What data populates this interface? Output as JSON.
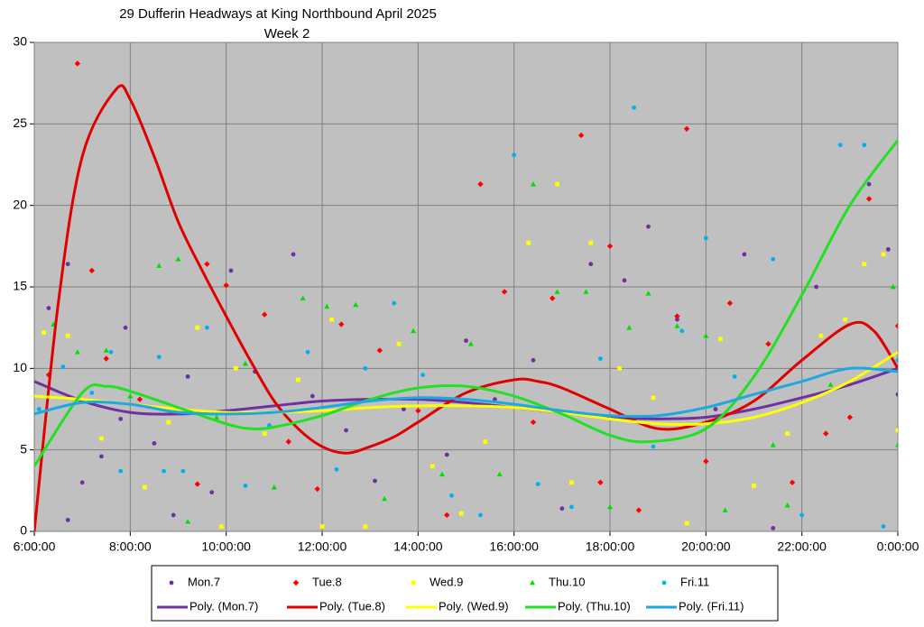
{
  "chart_data": {
    "type": "scatter",
    "title": "29 Dufferin Headways at King Northbound April 2025",
    "subtitle": "Week 2",
    "xlim": [
      6,
      24
    ],
    "ylim": [
      0,
      30
    ],
    "xticks": [
      {
        "value": 6,
        "label": "6:00:00"
      },
      {
        "value": 8,
        "label": "8:00:00"
      },
      {
        "value": 10,
        "label": "10:00:00"
      },
      {
        "value": 12,
        "label": "12:00:00"
      },
      {
        "value": 14,
        "label": "14:00:00"
      },
      {
        "value": 16,
        "label": "16:00:00"
      },
      {
        "value": 18,
        "label": "18:00:00"
      },
      {
        "value": 20,
        "label": "20:00:00"
      },
      {
        "value": 22,
        "label": "22:00:00"
      },
      {
        "value": 24,
        "label": "0:00:00"
      }
    ],
    "yticks": [
      0,
      5,
      10,
      15,
      20,
      25,
      30
    ],
    "grid": true,
    "legend": "bottom",
    "plot_background": "#c0c0c0",
    "series": [
      {
        "name": "Mon.7",
        "color": "#7030a0",
        "marker": "circle",
        "x": [
          6.3,
          6.7,
          6.7,
          7.0,
          7.4,
          7.8,
          7.9,
          8.5,
          8.9,
          9.2,
          9.7,
          10.1,
          10.6,
          11.4,
          11.8,
          12.5,
          13.1,
          13.7,
          14.6,
          15.0,
          15.6,
          16.4,
          17.0,
          17.6,
          18.3,
          18.8,
          19.4,
          20.2,
          20.8,
          21.4,
          22.3,
          23.4,
          23.8,
          24
        ],
        "values": [
          13.7,
          16.4,
          0.7,
          3.0,
          4.6,
          6.9,
          12.5,
          5.4,
          1.0,
          9.5,
          2.4,
          16,
          9.8,
          17,
          8.3,
          6.2,
          3.1,
          7.5,
          4.7,
          11.7,
          8.1,
          10.5,
          1.4,
          16.4,
          15.4,
          18.7,
          13,
          7.5,
          17,
          0.2,
          15,
          21.3,
          17.3,
          8.4
        ]
      },
      {
        "name": "Tue.8",
        "color": "#ff0000",
        "marker": "diamond",
        "x": [
          6.3,
          6.9,
          7.2,
          7.5,
          8.2,
          9.4,
          9.6,
          10.0,
          10.8,
          11.3,
          11.9,
          12.4,
          13.2,
          14.0,
          14.6,
          15.3,
          15.8,
          16.4,
          16.8,
          17.4,
          17.8,
          18.0,
          18.6,
          19.4,
          19.6,
          20.0,
          20.5,
          21.3,
          21.8,
          22.5,
          23.0,
          23.4,
          24
        ],
        "values": [
          9.6,
          28.7,
          16,
          10.6,
          8.1,
          2.9,
          16.4,
          15.1,
          13.3,
          5.5,
          2.6,
          12.7,
          11.1,
          7.4,
          1.0,
          21.3,
          14.7,
          6.7,
          14.3,
          24.3,
          3.0,
          17.5,
          1.3,
          13.2,
          24.7,
          4.3,
          14,
          11.5,
          3,
          6,
          7,
          20.4,
          12.6
        ]
      },
      {
        "name": "Wed.9",
        "color": "#ffff00",
        "marker": "square",
        "x": [
          6.2,
          6.7,
          7.4,
          8.3,
          8.8,
          9.4,
          9.9,
          10.2,
          10.8,
          11.5,
          12.0,
          12.2,
          12.9,
          13.6,
          14.3,
          14.9,
          15.4,
          16.3,
          16.9,
          17.2,
          17.6,
          18.2,
          18.9,
          19.6,
          20.3,
          21.0,
          21.7,
          22.4,
          22.9,
          23.3,
          23.7,
          24
        ],
        "values": [
          12.2,
          12,
          5.7,
          2.7,
          6.7,
          12.5,
          0.3,
          10,
          6,
          9.3,
          0.3,
          13,
          0.3,
          11.5,
          4,
          1.1,
          5.5,
          17.7,
          21.3,
          3,
          17.7,
          10,
          8.2,
          0.5,
          11.8,
          2.8,
          6,
          12,
          13,
          16.4,
          17,
          6.2
        ]
      },
      {
        "name": "Thu.10",
        "color": "#00e000",
        "marker": "triangle",
        "x": [
          6.4,
          6.9,
          7.5,
          8.0,
          8.6,
          9.0,
          9.2,
          9.8,
          10.4,
          11.0,
          11.6,
          12.1,
          12.7,
          13.3,
          13.9,
          14.5,
          15.1,
          15.7,
          16.4,
          16.9,
          17.5,
          18.0,
          18.4,
          18.8,
          19.4,
          20.0,
          20.4,
          21.4,
          21.7,
          22.6,
          23.9,
          24
        ],
        "values": [
          12.7,
          11,
          11.1,
          8.3,
          16.3,
          16.7,
          0.6,
          7,
          10.3,
          2.7,
          14.3,
          13.8,
          13.9,
          2,
          12.3,
          3.5,
          11.5,
          3.5,
          21.3,
          14.7,
          14.7,
          1.5,
          12.5,
          14.6,
          12.6,
          12,
          1.3,
          5.3,
          1.6,
          9,
          15,
          5.3
        ]
      },
      {
        "name": "Fri.11",
        "color": "#00b0f0",
        "marker": "circle",
        "x": [
          6.1,
          6.6,
          7.2,
          7.6,
          7.8,
          8.6,
          8.7,
          9.1,
          9.6,
          10.4,
          10.9,
          11.7,
          12.3,
          12.9,
          13.5,
          14.1,
          14.7,
          15.3,
          16.0,
          16.5,
          17.2,
          17.8,
          18.5,
          18.9,
          19.5,
          20.0,
          20.6,
          21.4,
          22.0,
          22.8,
          23.3,
          23.7,
          24
        ],
        "values": [
          7.5,
          10.1,
          8.5,
          11,
          3.7,
          10.7,
          3.7,
          3.7,
          12.5,
          2.8,
          6.5,
          11,
          3.8,
          10,
          14,
          9.6,
          2.2,
          1.0,
          23.1,
          2.9,
          1.5,
          10.6,
          26,
          5.2,
          12.3,
          18,
          9.5,
          16.7,
          1.0,
          23.7,
          23.7,
          0.3,
          10.5
        ]
      }
    ],
    "trendlines": [
      {
        "name": "Poly. (Mon.7)",
        "color": "#7030a0",
        "x": [
          6,
          7,
          8,
          9,
          10,
          11,
          12,
          13,
          14,
          15,
          16,
          17,
          18,
          19,
          20,
          21,
          22,
          23,
          24
        ],
        "values": [
          9.2,
          8,
          7.3,
          7.2,
          7.4,
          7.7,
          8.0,
          8.1,
          8.1,
          7.9,
          7.6,
          7.3,
          7.0,
          6.9,
          7.0,
          7.5,
          8.2,
          9.0,
          10
        ]
      },
      {
        "name": "Poly. (Tue.8)",
        "color": "#e00000",
        "x": [
          6,
          6.5,
          7,
          7.7,
          8,
          8.5,
          9,
          9.5,
          10,
          10.5,
          11,
          11.5,
          12,
          12.5,
          13,
          13.5,
          14,
          15,
          16,
          16.5,
          17,
          18,
          19,
          20,
          21,
          22,
          23,
          23.5,
          24
        ],
        "values": [
          0,
          14,
          23,
          27.1,
          26.5,
          23,
          19,
          16,
          13.2,
          10.5,
          8,
          6.3,
          5.2,
          4.8,
          5.2,
          5.8,
          6.7,
          8.5,
          9.3,
          9.2,
          8.8,
          7.5,
          6.3,
          6.7,
          8,
          10.5,
          12.7,
          12.3,
          10
        ]
      },
      {
        "name": "Poly. (Wed.9)",
        "color": "#ffff00",
        "x": [
          6,
          7,
          8,
          9,
          10,
          11,
          12,
          13,
          14,
          15,
          16,
          17,
          18,
          19,
          20,
          21,
          22,
          23,
          24
        ],
        "values": [
          8.3,
          8.1,
          7.8,
          7.5,
          7.3,
          7.3,
          7.4,
          7.6,
          7.7,
          7.7,
          7.6,
          7.3,
          6.9,
          6.6,
          6.6,
          7.0,
          7.9,
          9.2,
          11
        ]
      },
      {
        "name": "Poly. (Thu.10)",
        "color": "#22e022",
        "x": [
          6,
          7,
          7.5,
          8,
          9,
          10,
          10.5,
          11,
          12,
          13,
          14,
          15,
          16,
          17,
          18,
          18.8,
          20,
          21,
          22,
          23,
          24
        ],
        "values": [
          4,
          8.5,
          8.9,
          8.6,
          7.6,
          6.6,
          6.3,
          6.4,
          7.1,
          8.1,
          8.8,
          8.9,
          8.3,
          7.2,
          5.9,
          5.5,
          6.3,
          9.5,
          14.5,
          20,
          24
        ]
      },
      {
        "name": "Poly. (Fri.11)",
        "color": "#1ca8e0",
        "x": [
          6,
          7,
          8,
          9,
          10,
          11,
          12,
          13,
          14,
          15,
          16,
          17,
          18,
          19,
          20,
          21,
          22,
          23,
          24
        ],
        "values": [
          7.2,
          7.9,
          7.8,
          7.3,
          7.2,
          7.3,
          7.6,
          8.0,
          8.2,
          8.1,
          7.8,
          7.4,
          7.1,
          7.1,
          7.6,
          8.4,
          9.2,
          10.0,
          9.8
        ]
      }
    ]
  }
}
